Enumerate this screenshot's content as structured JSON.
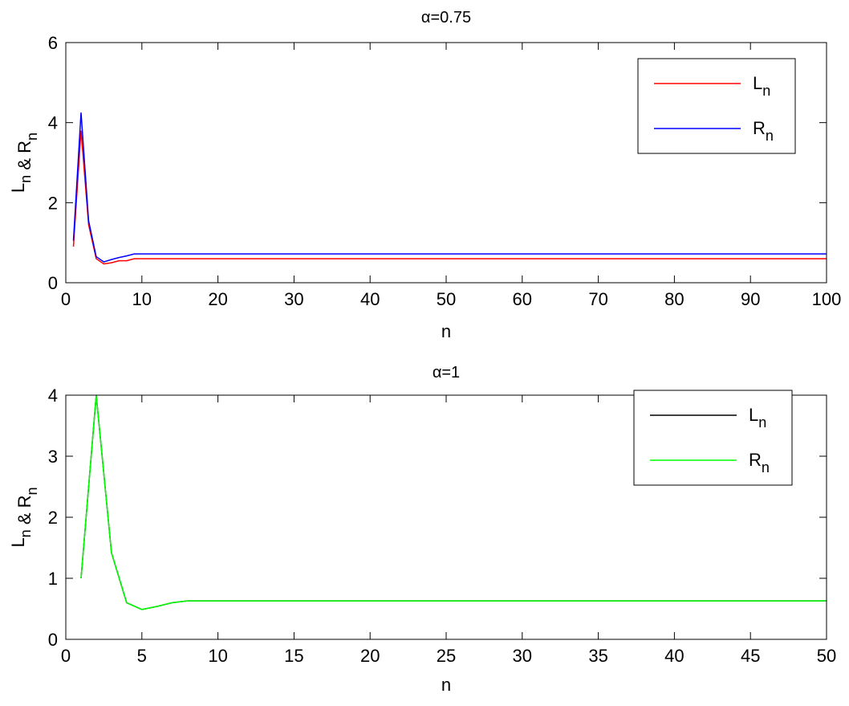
{
  "chart_data": [
    {
      "type": "line",
      "title": "α=0.75",
      "xlabel": "n",
      "ylabel": "L_n & R_n",
      "xlim": [
        0,
        100
      ],
      "ylim": [
        0,
        6
      ],
      "xticks": [
        0,
        10,
        20,
        30,
        40,
        50,
        60,
        70,
        80,
        90,
        100
      ],
      "yticks": [
        0,
        2,
        4,
        6
      ],
      "grid": false,
      "legend": "top-right",
      "series": [
        {
          "name": "L_n",
          "color": "#ff0000",
          "x": [
            1,
            2,
            3,
            4,
            5,
            6,
            7,
            8,
            9,
            10,
            100
          ],
          "y": [
            0.9,
            3.8,
            1.45,
            0.6,
            0.47,
            0.5,
            0.55,
            0.55,
            0.6,
            0.6,
            0.6
          ]
        },
        {
          "name": "R_n",
          "color": "#0000ff",
          "x": [
            1,
            2,
            3,
            4,
            5,
            6,
            7,
            8,
            9,
            10,
            100
          ],
          "y": [
            1.05,
            4.25,
            1.55,
            0.65,
            0.52,
            0.58,
            0.63,
            0.67,
            0.72,
            0.72,
            0.72
          ]
        }
      ]
    },
    {
      "type": "line",
      "title": "α=1",
      "xlabel": "n",
      "ylabel": "L_n & R_n",
      "xlim": [
        0,
        50
      ],
      "ylim": [
        0,
        4
      ],
      "xticks": [
        0,
        5,
        10,
        15,
        20,
        25,
        30,
        35,
        40,
        45,
        50
      ],
      "yticks": [
        0,
        1,
        2,
        3,
        4
      ],
      "grid": false,
      "legend": "top-right",
      "series": [
        {
          "name": "L_n",
          "color": "#000000",
          "x": [
            1,
            2,
            3,
            4,
            5,
            6,
            7,
            8,
            9,
            10,
            50
          ],
          "y": [
            1.0,
            4.0,
            1.42,
            0.6,
            0.49,
            0.54,
            0.6,
            0.63,
            0.63,
            0.63,
            0.63
          ]
        },
        {
          "name": "R_n",
          "color": "#00ff00",
          "x": [
            1,
            2,
            3,
            4,
            5,
            6,
            7,
            8,
            9,
            10,
            50
          ],
          "y": [
            1.0,
            4.0,
            1.42,
            0.6,
            0.49,
            0.54,
            0.6,
            0.63,
            0.63,
            0.63,
            0.63
          ]
        }
      ]
    }
  ]
}
